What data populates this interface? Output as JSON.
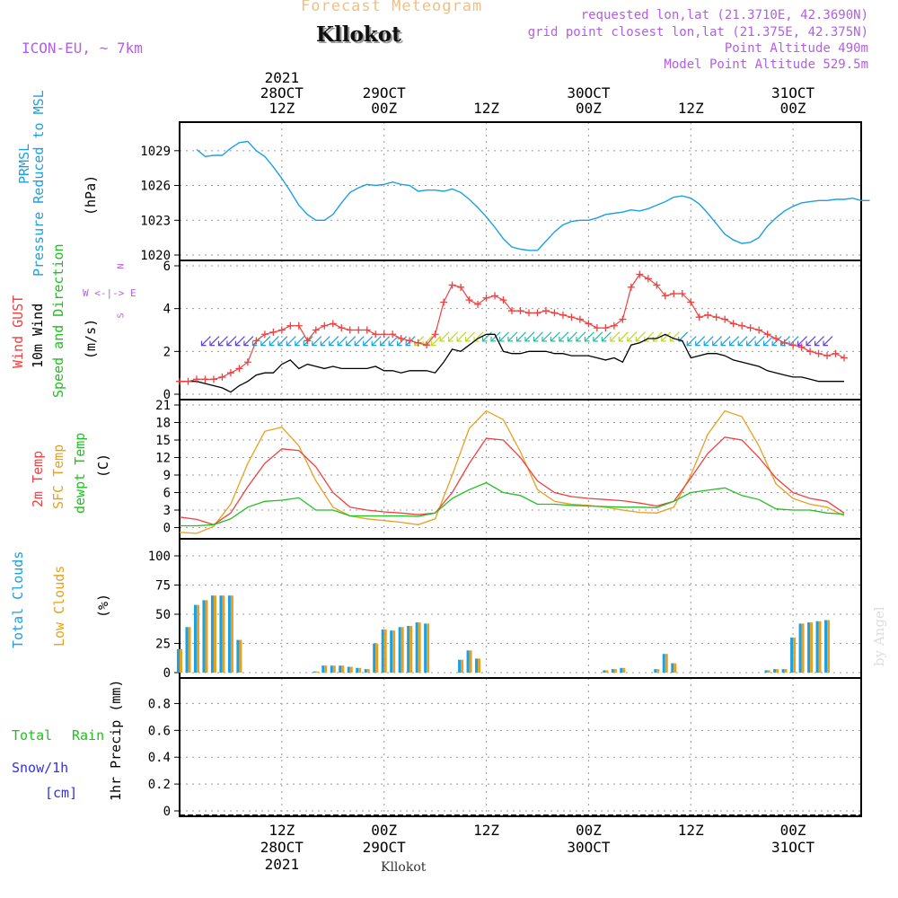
{
  "header": {
    "title": "Forecast Meteogram",
    "station": "Kllokot",
    "model": "ICON-EU, ~ 7km",
    "requested": "requested lon,lat (21.3710E, 42.3690N)",
    "grid_point": "grid point closest lon,lat (21.375E, 42.375N)",
    "point_altitude": "Point Altitude 490m",
    "model_altitude": "Model Point Altitude 529.5m",
    "footer_station": "Kllokot",
    "watermark": "by Angel"
  },
  "colors": {
    "pressure": "#1ba0e2",
    "gust": "#f04040",
    "wind": "#000000",
    "direction": "#20c020",
    "temp2m": "#f04040",
    "sfc": "#e8a020",
    "dewpt": "#20c020",
    "total_clouds": "#1ba0e2",
    "low_clouds": "#e8a020",
    "rain": "#20c020",
    "snow": "#3030f0",
    "purple": "#b060e0",
    "title": "#f0c080"
  },
  "time_axis": {
    "top_ticks": [
      {
        "label": "12Z",
        "date": "28OCT",
        "year": "2021"
      },
      {
        "label": "00Z",
        "date": "29OCT",
        "year": ""
      },
      {
        "label": "12Z",
        "date": "",
        "year": ""
      },
      {
        "label": "00Z",
        "date": "30OCT",
        "year": ""
      },
      {
        "label": "12Z",
        "date": "",
        "year": ""
      },
      {
        "label": "00Z",
        "date": "31OCT",
        "year": ""
      }
    ],
    "bottom_ticks": [
      {
        "label": "12Z",
        "date": "28OCT",
        "year": "2021"
      },
      {
        "label": "00Z",
        "date": "29OCT",
        "year": ""
      },
      {
        "label": "12Z",
        "date": "",
        "year": ""
      },
      {
        "label": "00Z",
        "date": "30OCT",
        "year": ""
      },
      {
        "label": "12Z",
        "date": "",
        "year": ""
      },
      {
        "label": "00Z",
        "date": "31OCT",
        "year": ""
      }
    ]
  },
  "panels": {
    "pressure": {
      "label1": "PRMSL",
      "label2": "Pressure Reduced to MSL",
      "unit": "(hPa)"
    },
    "wind": {
      "label_gust": "Wind GUST",
      "label_wind": "10m Wind",
      "label_dir": "Speed and Direction",
      "unit": "(m/s)",
      "compass": "W <-|-> E",
      "compass_n": "N",
      "compass_s": "S"
    },
    "temp": {
      "label_2m": "2m Temp",
      "label_sfc": "SFC Temp",
      "label_dew": "dewpt Temp",
      "unit": "(C)"
    },
    "clouds": {
      "label_total": "Total Clouds",
      "label_low": "Low Clouds",
      "unit": "(%)"
    },
    "precip": {
      "label_rain1": "Total",
      "label_rain2": "Rain",
      "label_snow": "Snow/1h",
      "label_cm": "[cm]",
      "unit": "1hr Precip (mm)"
    }
  },
  "chart_data": [
    {
      "type": "line",
      "title": "PRMSL",
      "ylabel": "(hPa)",
      "x_unit": "hours from 28OCT 00Z",
      "ylim": [
        1020,
        1031
      ],
      "yticks": [
        1020,
        1023,
        1026,
        1029
      ],
      "x": [
        2,
        3,
        4,
        5,
        6,
        7,
        8,
        9,
        10,
        11,
        12,
        13,
        14,
        15,
        16,
        17,
        18,
        19,
        20,
        21,
        22,
        23,
        24,
        25,
        26,
        27,
        28,
        29,
        30,
        31,
        32,
        33,
        34,
        35,
        36,
        37,
        38,
        39,
        40,
        41,
        42,
        43,
        44,
        45,
        46,
        47,
        48,
        49,
        50,
        51,
        52,
        53,
        54,
        55,
        56,
        57,
        58,
        59,
        60,
        61,
        62,
        63,
        64,
        65,
        66,
        67,
        68,
        69,
        70,
        71,
        72,
        73,
        74,
        75,
        76,
        77,
        78,
        79,
        80,
        81
      ],
      "series": [
        {
          "values": [
            1029.1,
            1028.5,
            1028.6,
            1028.6,
            1029.2,
            1029.7,
            1029.8,
            1029.0,
            1028.5,
            1027.6,
            1026.6,
            1025.5,
            1024.3,
            1023.5,
            1023.0,
            1023.0,
            1023.5,
            1024.5,
            1025.4,
            1025.8,
            1026.1,
            1026.0,
            1026.1,
            1026.3,
            1026.1,
            1026.0,
            1025.5,
            1025.6,
            1025.6,
            1025.5,
            1025.7,
            1025.4,
            1024.8,
            1024.1,
            1023.3,
            1022.4,
            1021.4,
            1020.7,
            1020.5,
            1020.4,
            1020.4,
            1021.2,
            1022.0,
            1022.6,
            1022.9,
            1023.0,
            1023.0,
            1023.2,
            1023.5,
            1023.6,
            1023.7,
            1023.9,
            1023.8,
            1024.0,
            1024.3,
            1024.6,
            1025.0,
            1025.1,
            1024.9,
            1024.4,
            1023.6,
            1022.7,
            1021.8,
            1021.3,
            1021.0,
            1021.1,
            1021.5,
            1022.5,
            1023.2,
            1023.8,
            1024.2,
            1024.5,
            1024.6,
            1024.7,
            1024.7,
            1024.8,
            1024.8,
            1024.9,
            1024.7,
            1024.7
          ]
        }
      ]
    },
    {
      "type": "line",
      "title": "Wind",
      "ylabel": "(m/s)",
      "ylim": [
        0,
        6
      ],
      "yticks": [
        0,
        2,
        4,
        6
      ],
      "x": [
        0,
        1,
        2,
        3,
        4,
        5,
        6,
        7,
        8,
        9,
        10,
        11,
        12,
        13,
        14,
        15,
        16,
        17,
        18,
        19,
        20,
        21,
        22,
        23,
        24,
        25,
        26,
        27,
        28,
        29,
        30,
        31,
        32,
        33,
        34,
        35,
        36,
        37,
        38,
        39,
        40,
        41,
        42,
        43,
        44,
        45,
        46,
        47,
        48,
        49,
        50,
        51,
        52,
        53,
        54,
        55,
        56,
        57,
        58,
        59,
        60,
        61,
        62,
        63,
        64,
        65,
        66,
        67,
        68,
        69,
        70,
        71,
        72,
        73,
        74,
        75,
        76,
        77,
        78
      ],
      "series": [
        {
          "name": "Wind GUST",
          "values": [
            0.6,
            0.6,
            0.7,
            0.7,
            0.7,
            0.8,
            1.0,
            1.2,
            1.5,
            2.5,
            2.8,
            2.9,
            3.0,
            3.2,
            3.2,
            2.5,
            3.0,
            3.2,
            3.3,
            3.1,
            3.0,
            3.0,
            3.0,
            2.8,
            2.8,
            2.8,
            2.6,
            2.5,
            2.4,
            2.3,
            2.8,
            4.3,
            5.1,
            5.0,
            4.4,
            4.2,
            4.5,
            4.6,
            4.4,
            3.9,
            3.9,
            3.8,
            3.8,
            3.9,
            3.8,
            3.7,
            3.6,
            3.5,
            3.3,
            3.1,
            3.1,
            3.2,
            3.5,
            5.0,
            5.6,
            5.4,
            5.1,
            4.6,
            4.7,
            4.7,
            4.3,
            3.6,
            3.7,
            3.6,
            3.5,
            3.3,
            3.2,
            3.1,
            3.0,
            2.8,
            2.6,
            2.4,
            2.3,
            2.2,
            2.0,
            1.9,
            1.8,
            1.9,
            1.7
          ]
        },
        {
          "name": "10m Wind",
          "values": [
            0.6,
            0.6,
            0.6,
            0.5,
            0.4,
            0.3,
            0.1,
            0.4,
            0.6,
            0.9,
            1.0,
            1.0,
            1.4,
            1.6,
            1.2,
            1.4,
            1.3,
            1.2,
            1.3,
            1.2,
            1.2,
            1.2,
            1.2,
            1.3,
            1.1,
            1.1,
            1.0,
            1.1,
            1.1,
            1.1,
            1.0,
            1.5,
            2.1,
            2.0,
            2.3,
            2.6,
            2.8,
            2.8,
            2.0,
            1.9,
            1.9,
            2.0,
            2.0,
            2.0,
            1.9,
            1.9,
            1.8,
            1.8,
            1.8,
            1.7,
            1.6,
            1.7,
            1.5,
            2.3,
            2.4,
            2.6,
            2.6,
            2.8,
            2.6,
            2.5,
            1.7,
            1.8,
            1.9,
            1.9,
            1.8,
            1.6,
            1.5,
            1.4,
            1.3,
            1.1,
            1.0,
            0.9,
            0.8,
            0.8,
            0.7,
            0.6,
            0.6,
            0.6,
            0.6
          ]
        }
      ]
    },
    {
      "type": "line",
      "title": "Temperature",
      "ylabel": "(C)",
      "ylim": [
        -1,
        21
      ],
      "yticks": [
        0,
        3,
        6,
        9,
        12,
        15,
        18,
        21
      ],
      "x": [
        0,
        2,
        4,
        6,
        8,
        10,
        12,
        14,
        16,
        18,
        20,
        22,
        24,
        26,
        28,
        30,
        32,
        34,
        36,
        38,
        40,
        42,
        44,
        46,
        48,
        50,
        52,
        54,
        56,
        58,
        60,
        62,
        64,
        66,
        68,
        70,
        72,
        74,
        76,
        78
      ],
      "series": [
        {
          "name": "2m Temp",
          "values": [
            1.8,
            1.4,
            0.5,
            2.5,
            7,
            11,
            13.5,
            13.2,
            10.4,
            6,
            3.5,
            3,
            2.7,
            2.5,
            2.2,
            2.5,
            6,
            11,
            15.3,
            15,
            12,
            8,
            6,
            5.3,
            5,
            4.8,
            4.6,
            4.2,
            3.7,
            4.5,
            8.5,
            12.7,
            15.5,
            15,
            12,
            8.5,
            6,
            5,
            4.5,
            2.5
          ]
        },
        {
          "name": "SFC Temp",
          "values": [
            -0.8,
            -1,
            0.2,
            4,
            11,
            16.5,
            17.2,
            14,
            8,
            3.5,
            2,
            1.5,
            1.2,
            0.9,
            0.5,
            1.5,
            9,
            17,
            20,
            18.5,
            13,
            6.5,
            4.5,
            4,
            3.8,
            3.5,
            3,
            2.6,
            2.5,
            3.5,
            9,
            16,
            20,
            19,
            14,
            7.5,
            5,
            4,
            3.5,
            2
          ]
        },
        {
          "name": "dewpt Temp",
          "values": [
            0.3,
            0.3,
            0.5,
            1.5,
            3.5,
            4.5,
            4.7,
            5.1,
            3,
            3,
            2,
            2,
            2,
            2,
            1.9,
            2.5,
            5,
            6.5,
            7.7,
            6,
            5.5,
            4,
            4,
            3.8,
            3.7,
            3.6,
            3.5,
            3.5,
            3.4,
            4.5,
            6,
            6.4,
            6.8,
            5.5,
            4.8,
            3.2,
            3,
            3,
            2.5,
            2.3
          ]
        }
      ]
    },
    {
      "type": "bar",
      "title": "Clouds",
      "ylabel": "(%)",
      "ylim": [
        0,
        110
      ],
      "yticks": [
        0,
        25,
        50,
        75,
        100
      ],
      "x": [
        0,
        1,
        2,
        3,
        4,
        5,
        6,
        7,
        8,
        9,
        10,
        11,
        12,
        13,
        14,
        15,
        16,
        17,
        18,
        19,
        20,
        21,
        22,
        23,
        24,
        25,
        26,
        27,
        28,
        29,
        30,
        31,
        32,
        33,
        34,
        35,
        36,
        37,
        38,
        39,
        40,
        41,
        42,
        43,
        44,
        45,
        46,
        47,
        48,
        49,
        50,
        51,
        52,
        53,
        54,
        55,
        56,
        57,
        58,
        59,
        60,
        61,
        62,
        63,
        64,
        65,
        66,
        67,
        68,
        69,
        70,
        71,
        72,
        73,
        74,
        75,
        76
      ],
      "series": [
        {
          "name": "Total Clouds",
          "values": [
            20,
            39,
            58,
            62,
            66,
            66,
            66,
            28,
            0,
            0,
            0,
            0,
            0,
            0,
            0,
            0,
            1,
            6,
            6,
            6,
            5,
            4,
            3,
            25,
            37,
            36,
            39,
            40,
            43,
            42,
            0,
            0,
            0,
            11,
            19,
            12,
            0,
            0,
            0,
            0,
            0,
            0,
            0,
            0,
            0,
            0,
            0,
            0,
            0,
            0,
            2,
            3,
            4,
            0,
            0,
            0,
            3,
            16,
            8,
            0,
            0,
            0,
            0,
            0,
            0,
            0,
            0,
            0,
            0,
            2,
            3,
            3,
            30,
            42,
            43,
            44,
            45
          ]
        },
        {
          "name": "Low Clouds",
          "values": [
            20,
            39,
            58,
            62,
            66,
            66,
            66,
            28,
            0,
            0,
            0,
            0,
            0,
            0,
            0,
            0,
            1,
            6,
            6,
            6,
            5,
            4,
            3,
            25,
            37,
            36,
            39,
            40,
            43,
            42,
            0,
            0,
            0,
            11,
            19,
            12,
            0,
            0,
            0,
            0,
            0,
            0,
            0,
            0,
            0,
            0,
            0,
            0,
            0,
            0,
            2,
            3,
            4,
            0,
            0,
            0,
            3,
            16,
            8,
            0,
            0,
            0,
            0,
            0,
            0,
            0,
            0,
            0,
            0,
            2,
            3,
            3,
            30,
            42,
            43,
            44,
            45
          ]
        }
      ]
    },
    {
      "type": "bar",
      "title": "Precipitation",
      "ylabel": "1hr Precip (mm)",
      "ylim": [
        0,
        0.95
      ],
      "yticks": [
        0,
        0.2,
        0.4,
        0.6,
        0.8
      ],
      "series": [
        {
          "name": "Total Rain",
          "values": []
        },
        {
          "name": "Snow/1h",
          "values": []
        }
      ]
    }
  ]
}
